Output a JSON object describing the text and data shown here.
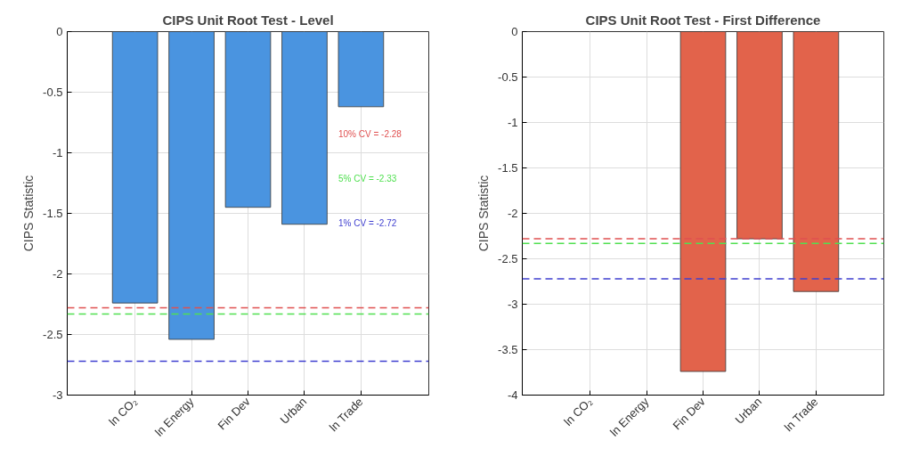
{
  "chart_data": [
    {
      "type": "bar",
      "title": "CIPS Unit Root Test - Level",
      "ylabel": "CIPS Statistic",
      "categories": [
        "ln CO₂",
        "ln Energy",
        "Fin Dev",
        "Urban",
        "ln Trade"
      ],
      "values": [
        -2.24,
        -2.54,
        -1.45,
        -1.59,
        -0.62
      ],
      "color": "#4a94e0",
      "ylim": [
        -3,
        0
      ],
      "yticks": [
        -3,
        -2.5,
        -2,
        -1.5,
        -1,
        -0.5,
        0
      ],
      "grid": true,
      "ref_lines": [
        {
          "axis": "y",
          "value": -2.28,
          "label": "10% CV = -2.28",
          "color": "#e05050",
          "line_style": "dashed"
        },
        {
          "axis": "y",
          "value": -2.33,
          "label": "5% CV = -2.33",
          "color": "#50e050",
          "line_style": "dashed"
        },
        {
          "axis": "y",
          "value": -2.72,
          "label": "1% CV = -2.72",
          "color": "#4040d0",
          "line_style": "dashed"
        }
      ]
    },
    {
      "type": "bar",
      "title": "CIPS Unit Root Test - First Difference",
      "ylabel": "CIPS Statistic",
      "categories": [
        "ln CO₂",
        "ln Energy",
        "Fin Dev",
        "Urban",
        "ln Trade"
      ],
      "values": [
        null,
        null,
        -3.74,
        -2.28,
        -2.86
      ],
      "color": "#e2634b",
      "ylim": [
        -4,
        0
      ],
      "yticks": [
        -4,
        -3.5,
        -3,
        -2.5,
        -2,
        -1.5,
        -1,
        -0.5,
        0
      ],
      "grid": true,
      "ref_lines": [
        {
          "axis": "y",
          "value": -2.28,
          "color": "#e05050",
          "line_style": "dashed"
        },
        {
          "axis": "y",
          "value": -2.33,
          "color": "#50e050",
          "line_style": "dashed"
        },
        {
          "axis": "y",
          "value": -2.72,
          "color": "#4040d0",
          "line_style": "dashed"
        }
      ]
    }
  ]
}
